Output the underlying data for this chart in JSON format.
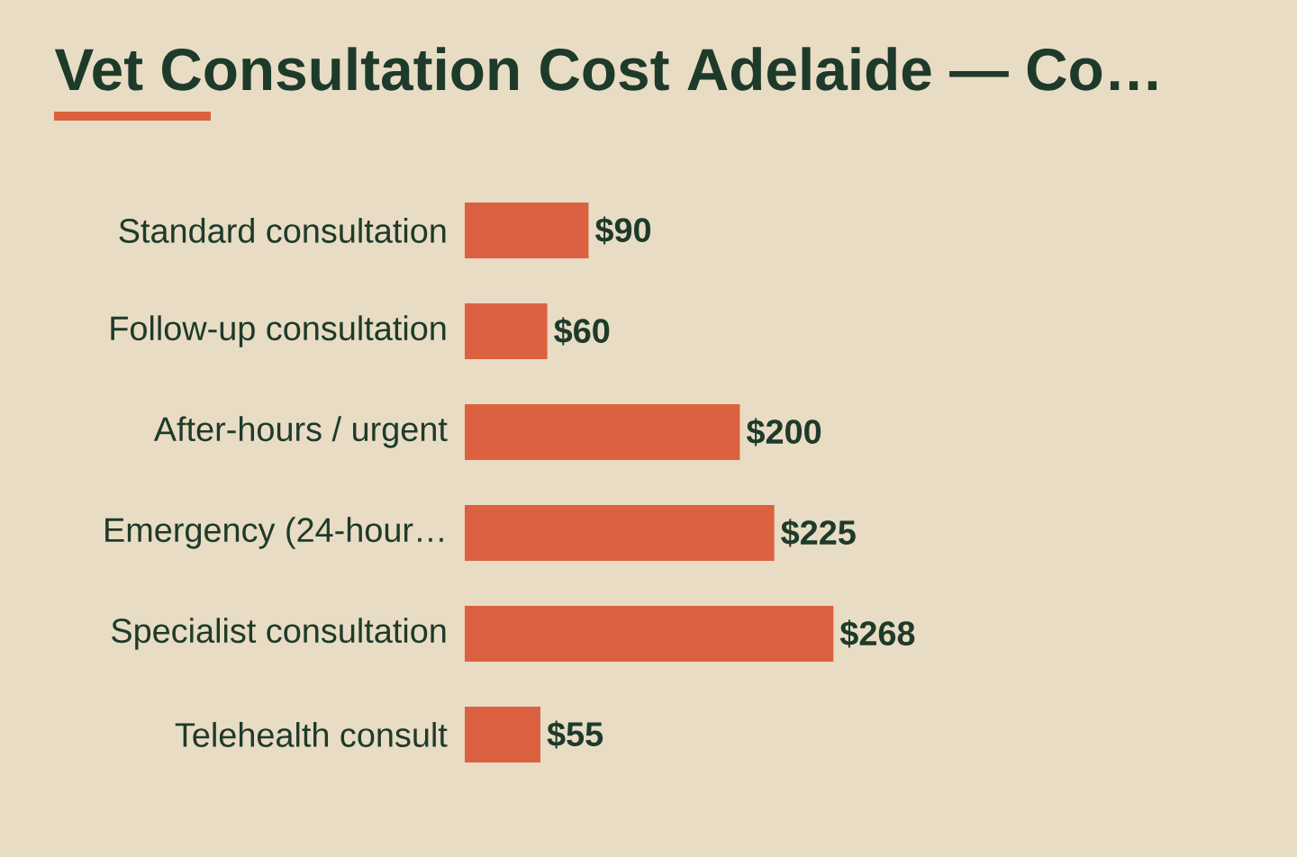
{
  "chart_data": {
    "type": "bar",
    "orientation": "horizontal",
    "title": "Vet Consultation Cost Adelaide — Co…",
    "categories": [
      "Standard consultation",
      "Follow-up consultation",
      "After-hours / urgent",
      "Emergency (24-hour…",
      "Specialist consultation",
      "Telehealth consult"
    ],
    "values": [
      90,
      60,
      200,
      225,
      268,
      55
    ],
    "value_labels": [
      "$90",
      "$60",
      "$200",
      "$225",
      "$268",
      "$55"
    ],
    "color": "#dc6140",
    "tick_labels": "y"
  }
}
